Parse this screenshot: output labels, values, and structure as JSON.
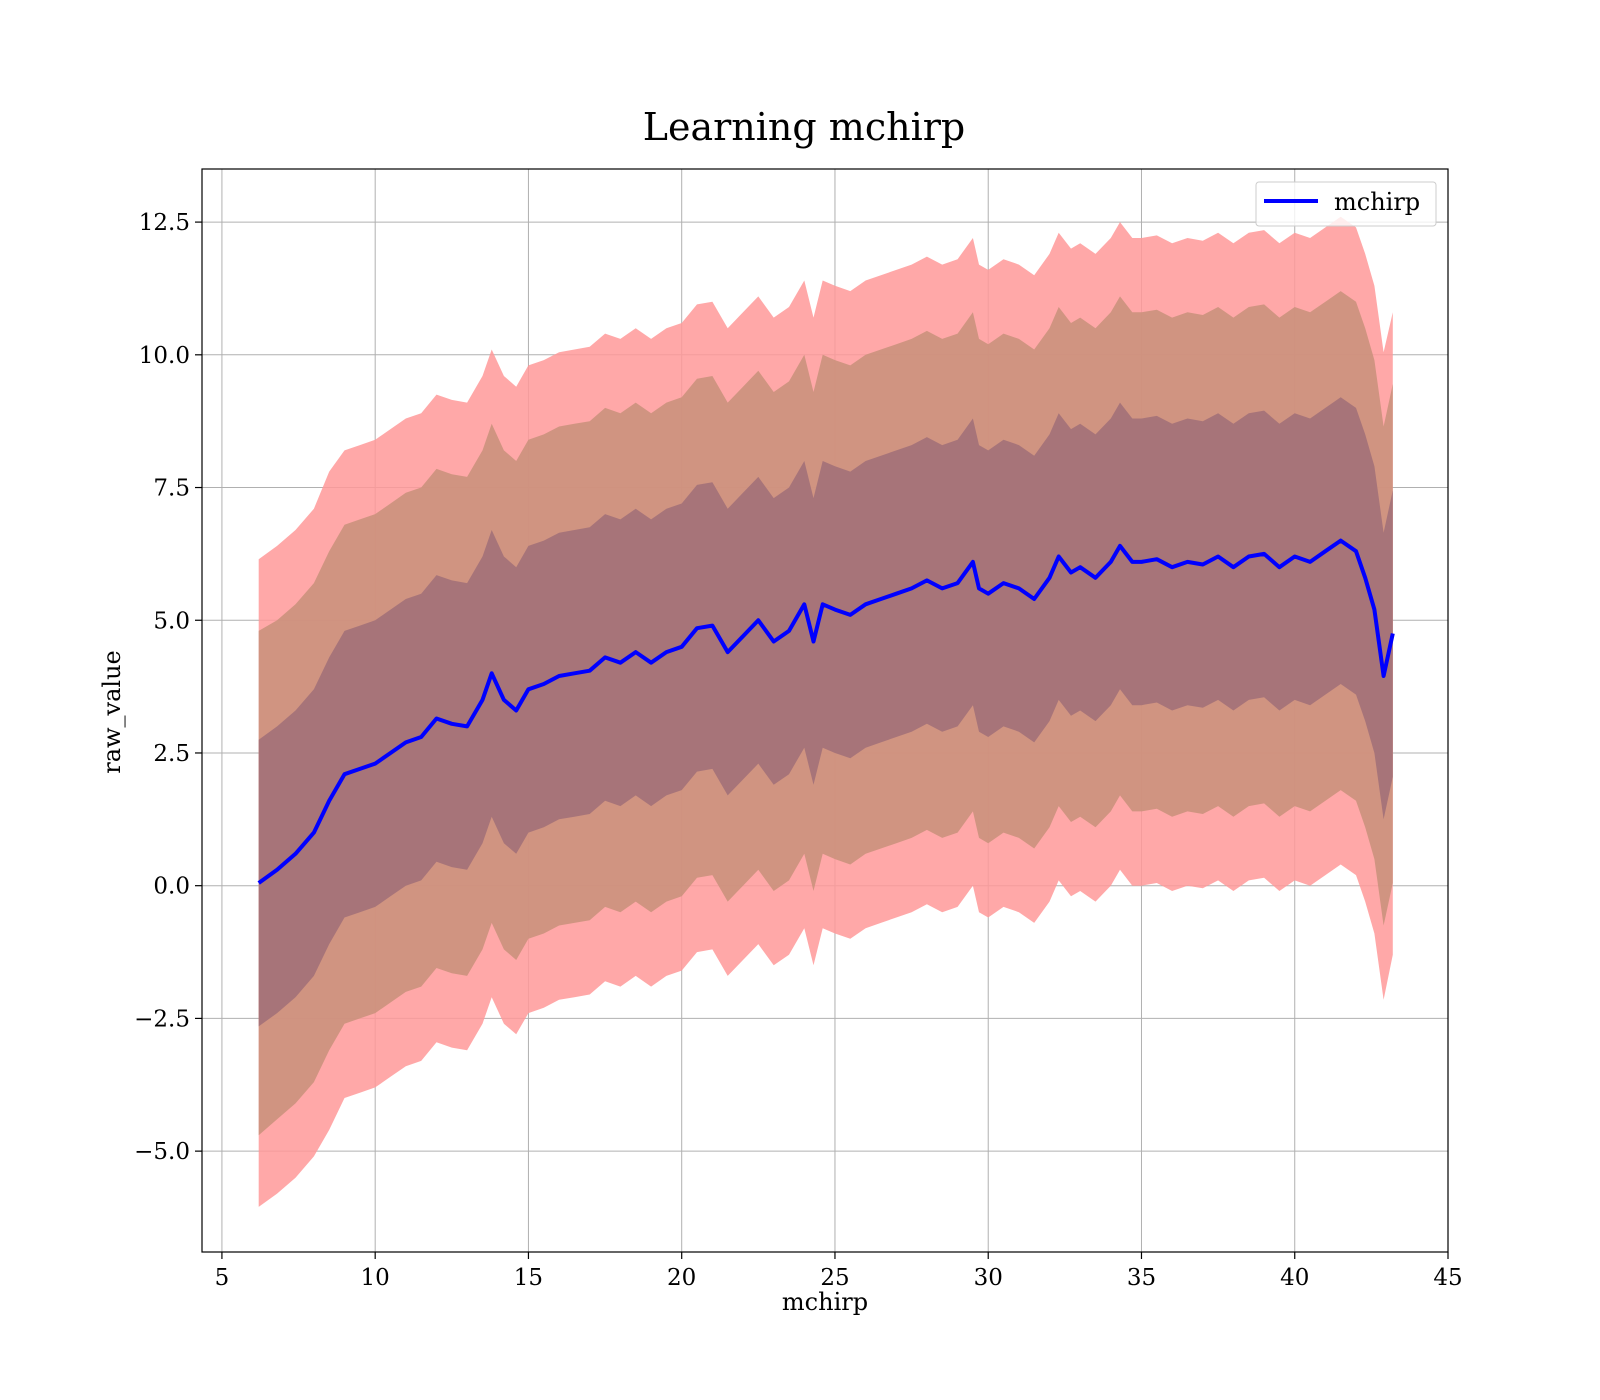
{
  "chart_data": {
    "type": "line",
    "title": "Learning mchirp",
    "xlabel": "mchirp",
    "ylabel": "raw_value",
    "xlim": [
      4.35,
      45
    ],
    "ylim": [
      -6.9,
      13.5
    ],
    "xticks": [
      5,
      10,
      15,
      20,
      25,
      30,
      35,
      40,
      45
    ],
    "yticks": [
      -5.0,
      -2.5,
      0.0,
      2.5,
      5.0,
      7.5,
      10.0,
      12.5
    ],
    "ytick_labels": [
      "−5.0",
      "−2.5",
      "0.0",
      "2.5",
      "5.0",
      "7.5",
      "10.0",
      "12.5"
    ],
    "grid": true,
    "legend": {
      "position": "top-right",
      "entries": [
        "mchirp"
      ]
    },
    "colors": {
      "line": "#0000ff",
      "band_outer": "#ff9999",
      "band_middle": "#c8907a",
      "band_inner": "#a06f78"
    },
    "series": [
      {
        "name": "mchirp",
        "x": [
          6.2,
          6.8,
          7.4,
          8.0,
          8.5,
          9.0,
          9.5,
          10.0,
          10.5,
          11.0,
          11.5,
          12.0,
          12.5,
          13.0,
          13.5,
          13.8,
          14.2,
          14.6,
          15.0,
          15.5,
          16.0,
          16.5,
          17.0,
          17.5,
          18.0,
          18.5,
          19.0,
          19.5,
          20.0,
          20.5,
          21.0,
          21.5,
          22.0,
          22.5,
          23.0,
          23.5,
          24.0,
          24.3,
          24.6,
          25.0,
          25.5,
          26.0,
          26.5,
          27.0,
          27.5,
          28.0,
          28.5,
          29.0,
          29.5,
          29.7,
          30.0,
          30.5,
          31.0,
          31.5,
          32.0,
          32.3,
          32.7,
          33.0,
          33.5,
          34.0,
          34.3,
          34.7,
          35.0,
          35.5,
          36.0,
          36.5,
          37.0,
          37.5,
          38.0,
          38.5,
          39.0,
          39.5,
          40.0,
          40.5,
          41.0,
          41.5,
          42.0,
          42.3,
          42.6,
          42.9,
          43.2
        ],
        "y": [
          0.05,
          0.3,
          0.6,
          1.0,
          1.6,
          2.1,
          2.2,
          2.3,
          2.5,
          2.7,
          2.8,
          3.15,
          3.05,
          3.0,
          3.5,
          4.0,
          3.5,
          3.3,
          3.7,
          3.8,
          3.95,
          4.0,
          4.05,
          4.3,
          4.2,
          4.4,
          4.2,
          4.4,
          4.5,
          4.85,
          4.9,
          4.4,
          4.7,
          5.0,
          4.6,
          4.8,
          5.3,
          4.6,
          5.3,
          5.2,
          5.1,
          5.3,
          5.4,
          5.5,
          5.6,
          5.75,
          5.6,
          5.7,
          6.1,
          5.6,
          5.5,
          5.7,
          5.6,
          5.4,
          5.8,
          6.2,
          5.9,
          6.0,
          5.8,
          6.1,
          6.4,
          6.1,
          6.1,
          6.15,
          6.0,
          6.1,
          6.05,
          6.2,
          6.0,
          6.2,
          6.25,
          6.0,
          6.2,
          6.1,
          6.3,
          6.5,
          6.3,
          5.8,
          5.2,
          3.95,
          4.75
        ],
        "bands": [
          {
            "name": "outer",
            "color": "#ff9999",
            "half_width": [
              6.1,
              6.1,
              6.1,
              6.1,
              6.2,
              6.1,
              6.1,
              6.1,
              6.1,
              6.1,
              6.1,
              6.1,
              6.1,
              6.1,
              6.1,
              6.1,
              6.1,
              6.1,
              6.1,
              6.1,
              6.1,
              6.1,
              6.1,
              6.1,
              6.1,
              6.1,
              6.1,
              6.1,
              6.1,
              6.1,
              6.1,
              6.1,
              6.1,
              6.1,
              6.1,
              6.1,
              6.1,
              6.1,
              6.1,
              6.1,
              6.1,
              6.1,
              6.1,
              6.1,
              6.1,
              6.1,
              6.1,
              6.1,
              6.1,
              6.1,
              6.1,
              6.1,
              6.1,
              6.1,
              6.1,
              6.1,
              6.1,
              6.1,
              6.1,
              6.1,
              6.1,
              6.1,
              6.1,
              6.1,
              6.1,
              6.1,
              6.1,
              6.1,
              6.1,
              6.1,
              6.1,
              6.1,
              6.1,
              6.1,
              6.1,
              6.1,
              6.1,
              6.1,
              6.1,
              6.1,
              6.05
            ]
          },
          {
            "name": "middle",
            "color": "#c8907a",
            "half_width": [
              4.75,
              4.7,
              4.7,
              4.7,
              4.7,
              4.7,
              4.7,
              4.7,
              4.7,
              4.7,
              4.7,
              4.7,
              4.7,
              4.7,
              4.7,
              4.7,
              4.7,
              4.7,
              4.7,
              4.7,
              4.7,
              4.7,
              4.7,
              4.7,
              4.7,
              4.7,
              4.7,
              4.7,
              4.7,
              4.7,
              4.7,
              4.7,
              4.7,
              4.7,
              4.7,
              4.7,
              4.7,
              4.7,
              4.7,
              4.7,
              4.7,
              4.7,
              4.7,
              4.7,
              4.7,
              4.7,
              4.7,
              4.7,
              4.7,
              4.7,
              4.7,
              4.7,
              4.7,
              4.7,
              4.7,
              4.7,
              4.7,
              4.7,
              4.7,
              4.7,
              4.7,
              4.7,
              4.7,
              4.7,
              4.7,
              4.7,
              4.7,
              4.7,
              4.7,
              4.7,
              4.7,
              4.7,
              4.7,
              4.7,
              4.7,
              4.7,
              4.7,
              4.7,
              4.7,
              4.7,
              4.7
            ]
          },
          {
            "name": "inner",
            "color": "#a06f78",
            "half_width": [
              2.7,
              2.7,
              2.7,
              2.7,
              2.7,
              2.7,
              2.7,
              2.7,
              2.7,
              2.7,
              2.7,
              2.7,
              2.7,
              2.7,
              2.7,
              2.7,
              2.7,
              2.7,
              2.7,
              2.7,
              2.7,
              2.7,
              2.7,
              2.7,
              2.7,
              2.7,
              2.7,
              2.7,
              2.7,
              2.7,
              2.7,
              2.7,
              2.7,
              2.7,
              2.7,
              2.7,
              2.7,
              2.7,
              2.7,
              2.7,
              2.7,
              2.7,
              2.7,
              2.7,
              2.7,
              2.7,
              2.7,
              2.7,
              2.7,
              2.7,
              2.7,
              2.7,
              2.7,
              2.7,
              2.7,
              2.7,
              2.7,
              2.7,
              2.7,
              2.7,
              2.7,
              2.7,
              2.7,
              2.7,
              2.7,
              2.7,
              2.7,
              2.7,
              2.7,
              2.7,
              2.7,
              2.7,
              2.7,
              2.7,
              2.7,
              2.7,
              2.7,
              2.7,
              2.7,
              2.7,
              2.7
            ]
          }
        ]
      }
    ]
  }
}
